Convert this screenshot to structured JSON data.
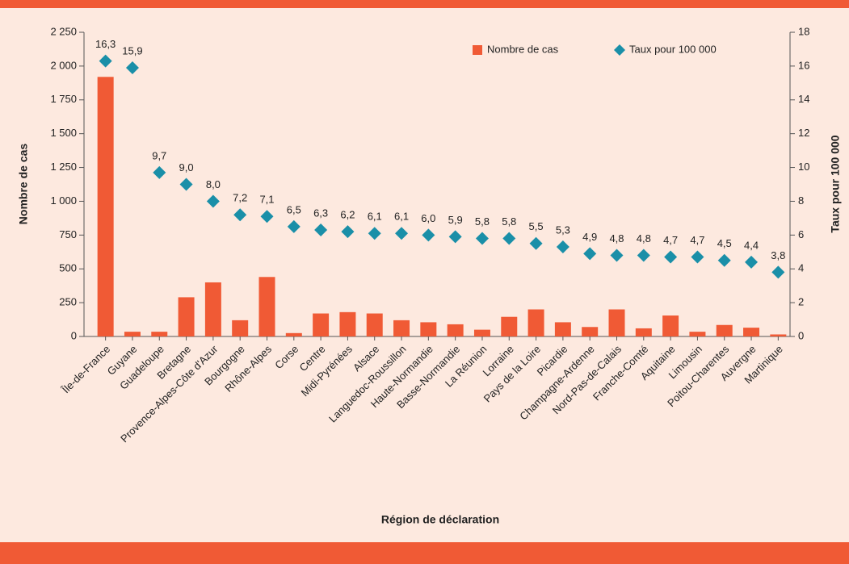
{
  "chart_data": {
    "type": "bar_scatter",
    "categories": [
      "Île-de-France",
      "Guyane",
      "Guadeloupe",
      "Bretagne",
      "Provence-Alpes-Côte d'Azur",
      "Bourgogne",
      "Rhône-Alpes",
      "Corse",
      "Centre",
      "Midi-Pyrénées",
      "Alsace",
      "Languedoc-Roussillon",
      "Haute-Normandie",
      "Basse-Normandie",
      "La Réunion",
      "Lorraine",
      "Pays de la Loire",
      "Picardie",
      "Champagne-Ardenne",
      "Nord-Pas-de-Calais",
      "Franche-Comté",
      "Aquitaine",
      "Limousin",
      "Poitou-Charentes",
      "Auvergne",
      "Martinique"
    ],
    "series": [
      {
        "name": "Nombre de cas",
        "color": "#f05a35",
        "type": "bar",
        "values": [
          1920,
          35,
          35,
          290,
          400,
          120,
          440,
          25,
          170,
          180,
          170,
          120,
          105,
          90,
          50,
          145,
          200,
          105,
          70,
          200,
          60,
          155,
          35,
          85,
          65,
          15
        ]
      },
      {
        "name": "Taux pour 100 000",
        "color": "#1a8fa8",
        "type": "scatter",
        "axis": "y2",
        "values": [
          16.3,
          15.9,
          9.7,
          9.0,
          8.0,
          7.2,
          7.1,
          6.5,
          6.3,
          6.2,
          6.1,
          6.1,
          6.0,
          5.9,
          5.8,
          5.8,
          5.5,
          5.3,
          4.9,
          4.8,
          4.8,
          4.7,
          4.7,
          4.5,
          4.4,
          3.8
        ],
        "value_labels": [
          "16,3",
          "15,9",
          "9,7",
          "9,0",
          "8,0",
          "7,2",
          "7,1",
          "6,5",
          "6,3",
          "6,2",
          "6,1",
          "6,1",
          "6,0",
          "5,9",
          "5,8",
          "5,8",
          "5,5",
          "5,3",
          "4,9",
          "4,8",
          "4,8",
          "4,7",
          "4,7",
          "4,5",
          "4,4",
          "3,8"
        ]
      }
    ],
    "ylabel": "Nombre de cas",
    "y2label": "Taux pour 100 000",
    "xlabel": "Région de déclaration",
    "ylim": [
      0,
      2250
    ],
    "yticks": [
      0,
      250,
      500,
      750,
      {
        "value": 1000,
        "label": "1 000"
      },
      {
        "value": 1250,
        "label": "1 250"
      },
      {
        "value": 1500,
        "label": "1 500"
      },
      {
        "value": 1750,
        "label": "1 750"
      },
      {
        "value": 2000,
        "label": "2 000"
      },
      {
        "value": 2250,
        "label": "2 250"
      }
    ],
    "y2lim": [
      0,
      18
    ],
    "y2ticks": [
      0,
      2,
      4,
      6,
      8,
      10,
      12,
      14,
      16,
      18
    ],
    "legend": "top-right"
  }
}
